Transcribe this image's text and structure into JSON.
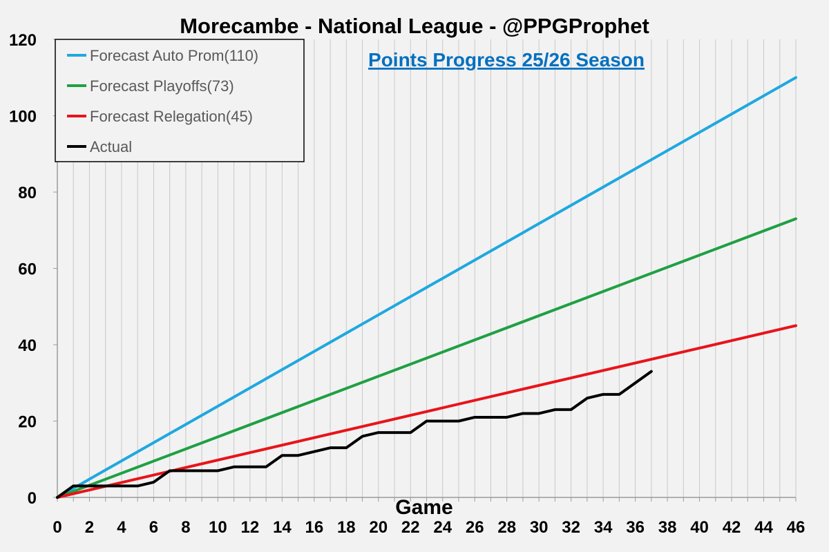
{
  "chart_data": {
    "type": "line",
    "title": "Morecambe - National League - @PPGProphet",
    "subtitle": "Points Progress 25/26 Season",
    "xlabel": "Game",
    "ylabel": "",
    "xlim": [
      0,
      46
    ],
    "ylim": [
      0,
      120
    ],
    "x_ticks": [
      0,
      2,
      4,
      6,
      8,
      10,
      12,
      14,
      16,
      18,
      20,
      22,
      24,
      26,
      28,
      30,
      32,
      34,
      36,
      38,
      40,
      42,
      44,
      46
    ],
    "y_ticks": [
      0,
      20,
      40,
      60,
      80,
      100,
      120
    ],
    "grid": "vertical",
    "legend_position": "top-left",
    "series": [
      {
        "name": "Forecast Auto Prom(110)",
        "color": "#1fa8e0",
        "x": [
          0,
          46
        ],
        "values": [
          0,
          110
        ]
      },
      {
        "name": "Forecast Playoffs(73)",
        "color": "#1fa043",
        "x": [
          0,
          46
        ],
        "values": [
          0,
          73
        ]
      },
      {
        "name": "Forecast Relegation(45)",
        "color": "#e8141a",
        "x": [
          0,
          46
        ],
        "values": [
          0,
          45
        ]
      },
      {
        "name": "Actual",
        "color": "#000000",
        "x": [
          0,
          1,
          2,
          3,
          4,
          5,
          6,
          7,
          8,
          9,
          10,
          11,
          12,
          13,
          14,
          15,
          16,
          17,
          18,
          19,
          20,
          21,
          22,
          23,
          24,
          25,
          26,
          27,
          28,
          29,
          30,
          31,
          32,
          33,
          34,
          35,
          36,
          37
        ],
        "values": [
          0,
          3,
          3,
          3,
          3,
          3,
          4,
          7,
          7,
          7,
          7,
          8,
          8,
          8,
          11,
          11,
          12,
          13,
          13,
          16,
          17,
          17,
          17,
          20,
          20,
          20,
          21,
          21,
          21,
          22,
          22,
          23,
          23,
          26,
          27,
          27,
          30,
          33
        ]
      }
    ]
  }
}
